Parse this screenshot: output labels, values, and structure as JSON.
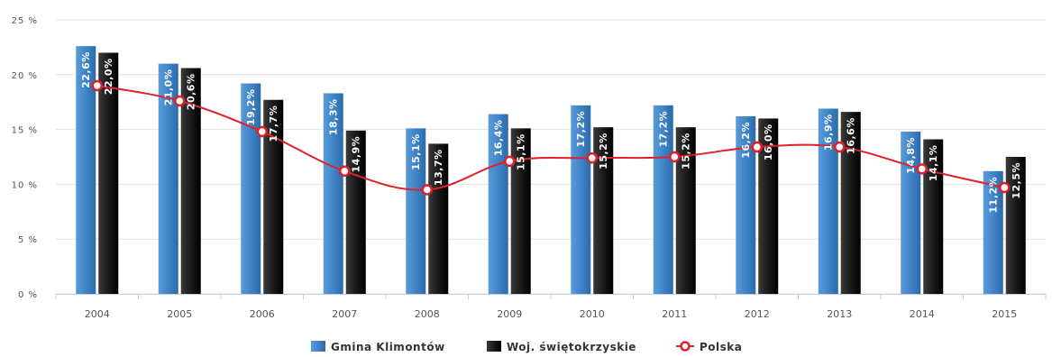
{
  "chart_data": {
    "type": "bar",
    "title": "",
    "xlabel": "",
    "ylabel": "",
    "ylim": [
      0,
      25
    ],
    "yticks": [
      0,
      5,
      10,
      15,
      20,
      25
    ],
    "ytick_labels": [
      "0 %",
      "5 %",
      "10 %",
      "15 %",
      "20 %",
      "25 %"
    ],
    "grid": true,
    "legend_position": "bottom-center",
    "categories": [
      "2004",
      "2005",
      "2006",
      "2007",
      "2008",
      "2009",
      "2010",
      "2011",
      "2012",
      "2013",
      "2014",
      "2015"
    ],
    "series": [
      {
        "name": "Gmina Klimontów",
        "type": "bar",
        "color": "#3f85c8",
        "values": [
          22.6,
          21.0,
          19.2,
          18.3,
          15.1,
          16.4,
          17.2,
          17.2,
          16.2,
          16.9,
          14.8,
          11.2
        ],
        "labels": [
          "22,6%",
          "21,0%",
          "19,2%",
          "18,3%",
          "15,1%",
          "16,4%",
          "17,2%",
          "17,2%",
          "16,2%",
          "16,9%",
          "14,8%",
          "11,2%"
        ]
      },
      {
        "name": "Woj. świętokrzyskie",
        "type": "bar",
        "color": "#1a1a1a",
        "values": [
          22.0,
          20.6,
          17.7,
          14.9,
          13.7,
          15.1,
          15.2,
          15.2,
          16.0,
          16.6,
          14.1,
          12.5
        ],
        "labels": [
          "22,0%",
          "20,6%",
          "17,7%",
          "14,9%",
          "13,7%",
          "15,1%",
          "15,2%",
          "15,2%",
          "16,0%",
          "16,6%",
          "14,1%",
          "12,5%"
        ]
      },
      {
        "name": "Polska",
        "type": "line",
        "color": "#e0202a",
        "values": [
          19.0,
          17.6,
          14.8,
          11.2,
          9.5,
          12.1,
          12.4,
          12.5,
          13.4,
          13.4,
          11.4,
          9.7
        ]
      }
    ]
  }
}
